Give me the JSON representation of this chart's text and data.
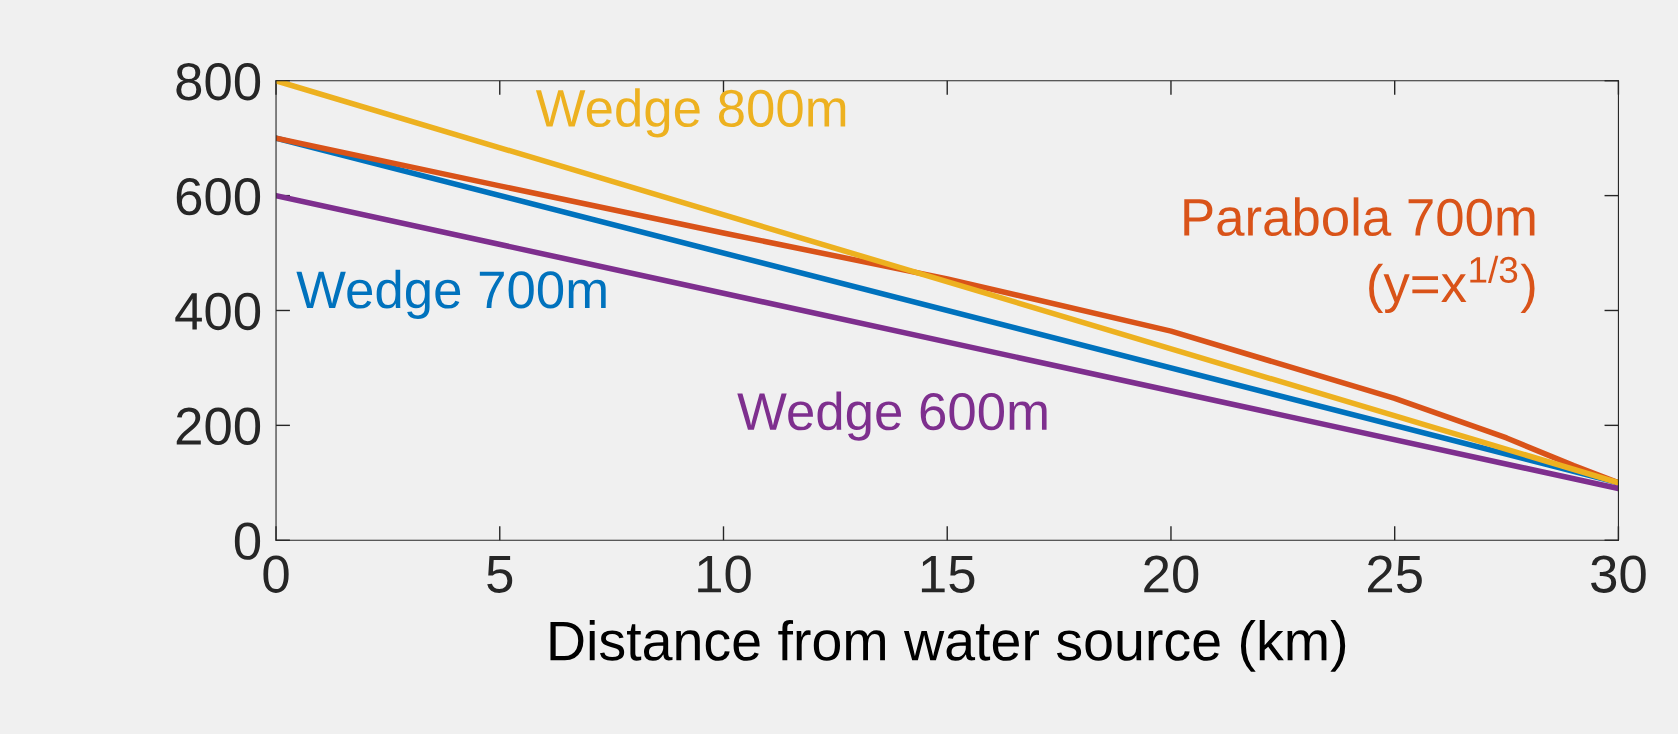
{
  "chart_data": {
    "type": "line",
    "xlabel": "Distance from water source (km)",
    "xlim": [
      0,
      30
    ],
    "xticks": [
      0,
      5,
      10,
      15,
      20,
      25,
      30
    ],
    "ylim": [
      0,
      800
    ],
    "yticks": [
      0,
      200,
      400,
      600,
      800
    ],
    "series": [
      {
        "name": "Wedge 700m",
        "color": "#0072bd",
        "x": [
          0,
          30
        ],
        "values": [
          700,
          100
        ]
      },
      {
        "name": "Parabola 700m\n(y=x$^{1/3}$)",
        "color": "#d95319",
        "x": [
          0,
          5,
          10,
          15,
          20,
          25,
          27.5,
          29,
          30
        ],
        "values": [
          700,
          617,
          535,
          455,
          364,
          247,
          178,
          130,
          100
        ]
      },
      {
        "name": "Wedge 800m",
        "color": "#edb120",
        "x": [
          0,
          30
        ],
        "values": [
          800,
          100
        ]
      },
      {
        "name": "Wedge 600m",
        "color": "#7e2f8e",
        "x": [
          0,
          30
        ],
        "values": [
          600,
          90
        ]
      }
    ]
  }
}
